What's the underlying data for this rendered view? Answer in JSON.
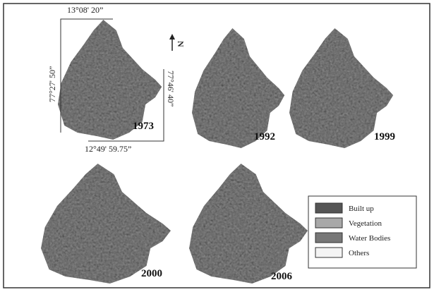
{
  "figure": {
    "coordinates": {
      "top": "13°08' 20”",
      "left": "77°27' 50”",
      "right": "77°46' 40”",
      "bottom": "12°49' 59.75”"
    },
    "north": "N",
    "panels": [
      {
        "year": "1973"
      },
      {
        "year": "1992"
      },
      {
        "year": "1999"
      },
      {
        "year": "2000"
      },
      {
        "year": "2006"
      }
    ],
    "legend": [
      {
        "label": "Built up"
      },
      {
        "label": "Vegetation"
      },
      {
        "label": "Water Bodies"
      },
      {
        "label": "Others"
      }
    ]
  }
}
